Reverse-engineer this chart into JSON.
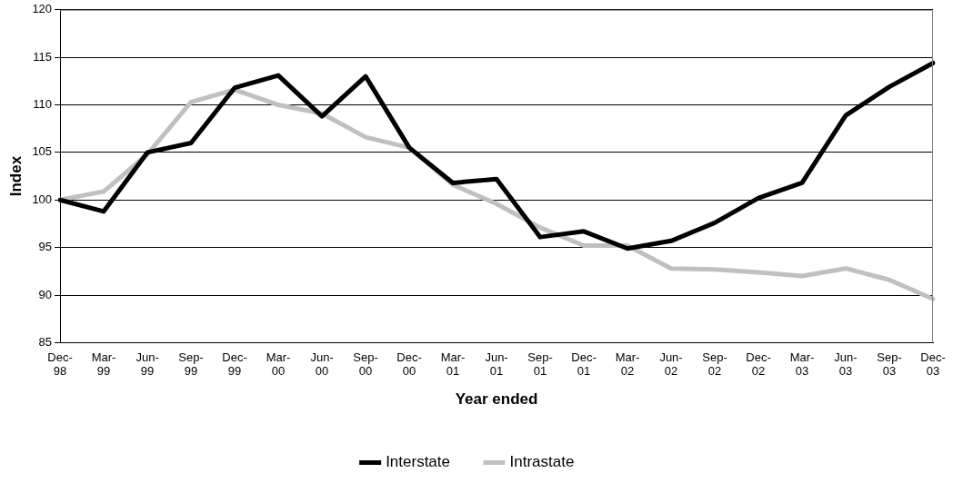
{
  "chart_data": {
    "type": "line",
    "xlabel": "Year ended",
    "ylabel": "Index",
    "categories": [
      "Dec-98",
      "Mar-99",
      "Jun-99",
      "Sep-99",
      "Dec-99",
      "Mar-00",
      "Jun-00",
      "Sep-00",
      "Dec-00",
      "Mar-01",
      "Jun-01",
      "Sep-01",
      "Dec-01",
      "Mar-02",
      "Jun-02",
      "Sep-02",
      "Dec-02",
      "Mar-03",
      "Jun-03",
      "Sep-03",
      "Dec-03"
    ],
    "series": [
      {
        "name": "Interstate",
        "color": "#000000",
        "values": [
          100,
          98.8,
          105,
          106,
          111.8,
          113.1,
          108.8,
          113,
          105.5,
          101.8,
          102.2,
          96.1,
          96.7,
          94.9,
          95.7,
          97.6,
          100.2,
          101.8,
          108.9,
          111.9,
          114.4
        ]
      },
      {
        "name": "Intrastate",
        "color": "#c0c0c0",
        "values": [
          100,
          100.9,
          104.8,
          110.3,
          111.6,
          110,
          109.1,
          106.6,
          105.5,
          101.6,
          99.6,
          97.1,
          95.2,
          95.2,
          92.8,
          92.7,
          92.4,
          92,
          92.8,
          91.6,
          89.6
        ]
      }
    ],
    "ylim": [
      85,
      120
    ],
    "yticks": [
      85,
      90,
      95,
      100,
      105,
      110,
      115,
      120
    ],
    "grid": "y",
    "legend": "bottom",
    "marker": "none",
    "line_style": "solid"
  }
}
